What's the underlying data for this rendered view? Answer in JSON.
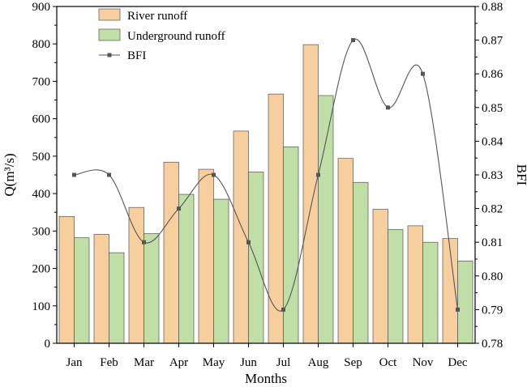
{
  "chart_data": {
    "type": "bar",
    "categories": [
      "Jan",
      "Feb",
      "Mar",
      "Apr",
      "May",
      "Jun",
      "Jul",
      "Aug",
      "Sep",
      "Oct",
      "Nov",
      "Dec"
    ],
    "series": [
      {
        "name": "River runoff",
        "kind": "bar",
        "axis": "left",
        "color": "#f7cf9f",
        "values": [
          339,
          291,
          363,
          484,
          465,
          567,
          666,
          798,
          494,
          358,
          314,
          280
        ]
      },
      {
        "name": "Underground runoff",
        "kind": "bar",
        "axis": "left",
        "color": "#bfdfa7",
        "values": [
          282,
          242,
          293,
          398,
          385,
          458,
          525,
          662,
          430,
          304,
          270,
          220
        ]
      },
      {
        "name": "BFI",
        "kind": "line",
        "axis": "right",
        "color": "#555555",
        "values": [
          0.83,
          0.83,
          0.81,
          0.82,
          0.83,
          0.81,
          0.79,
          0.83,
          0.87,
          0.85,
          0.86,
          0.79
        ]
      }
    ],
    "xlabel": "Months",
    "ylabel": "Q(m³/s)",
    "y2label": "BFI",
    "ylim": [
      0,
      900
    ],
    "yticks": [
      0,
      100,
      200,
      300,
      400,
      500,
      600,
      700,
      800,
      900
    ],
    "y2lim": [
      0.78,
      0.88
    ],
    "y2ticks": [
      "0.78",
      "0.79",
      "0.80",
      "0.81",
      "0.82",
      "0.83",
      "0.84",
      "0.85",
      "0.86",
      "0.87",
      "0.88"
    ],
    "legend_position": "top-left",
    "grid": false
  }
}
